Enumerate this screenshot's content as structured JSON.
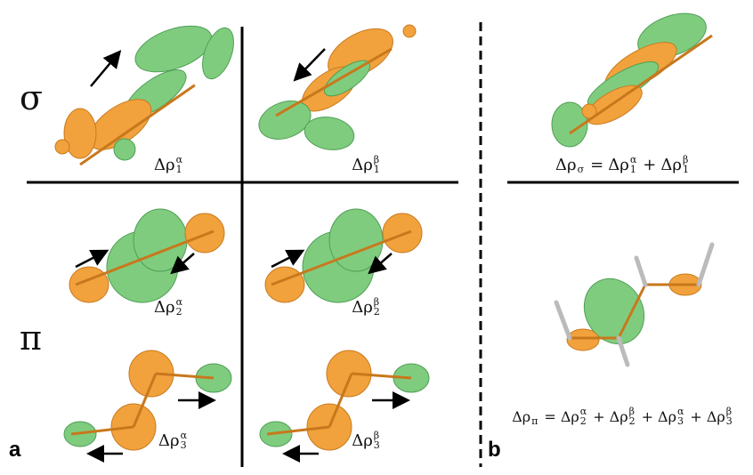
{
  "panel_a": {
    "label": "a",
    "rows": [
      "σ",
      "π"
    ],
    "density_labels": [
      {
        "base": "Δρ",
        "sub": "1",
        "sup": "α"
      },
      {
        "base": "Δρ",
        "sub": "1",
        "sup": "β"
      },
      {
        "base": "Δρ",
        "sub": "2",
        "sup": "α"
      },
      {
        "base": "Δρ",
        "sub": "2",
        "sup": "β"
      },
      {
        "base": "Δρ",
        "sub": "3",
        "sup": "α"
      },
      {
        "base": "Δρ",
        "sub": "3",
        "sup": "β"
      }
    ]
  },
  "panel_b": {
    "label": "b",
    "equations": [
      [
        {
          "base": "Δρ",
          "sub": "σ"
        },
        "=",
        {
          "base": "Δρ",
          "sub": "1",
          "sup": "α"
        },
        "+",
        {
          "base": "Δρ",
          "sub": "1",
          "sup": "β"
        }
      ],
      [
        {
          "base": "Δρ",
          "sub": "π"
        },
        "=",
        {
          "base": "Δρ",
          "sub": "2",
          "sup": "α"
        },
        "+",
        {
          "base": "Δρ",
          "sub": "2",
          "sup": "β"
        },
        "+",
        {
          "base": "Δρ",
          "sub": "3",
          "sup": "α"
        },
        "+",
        {
          "base": "Δρ",
          "sub": "3",
          "sup": "β"
        }
      ]
    ]
  }
}
